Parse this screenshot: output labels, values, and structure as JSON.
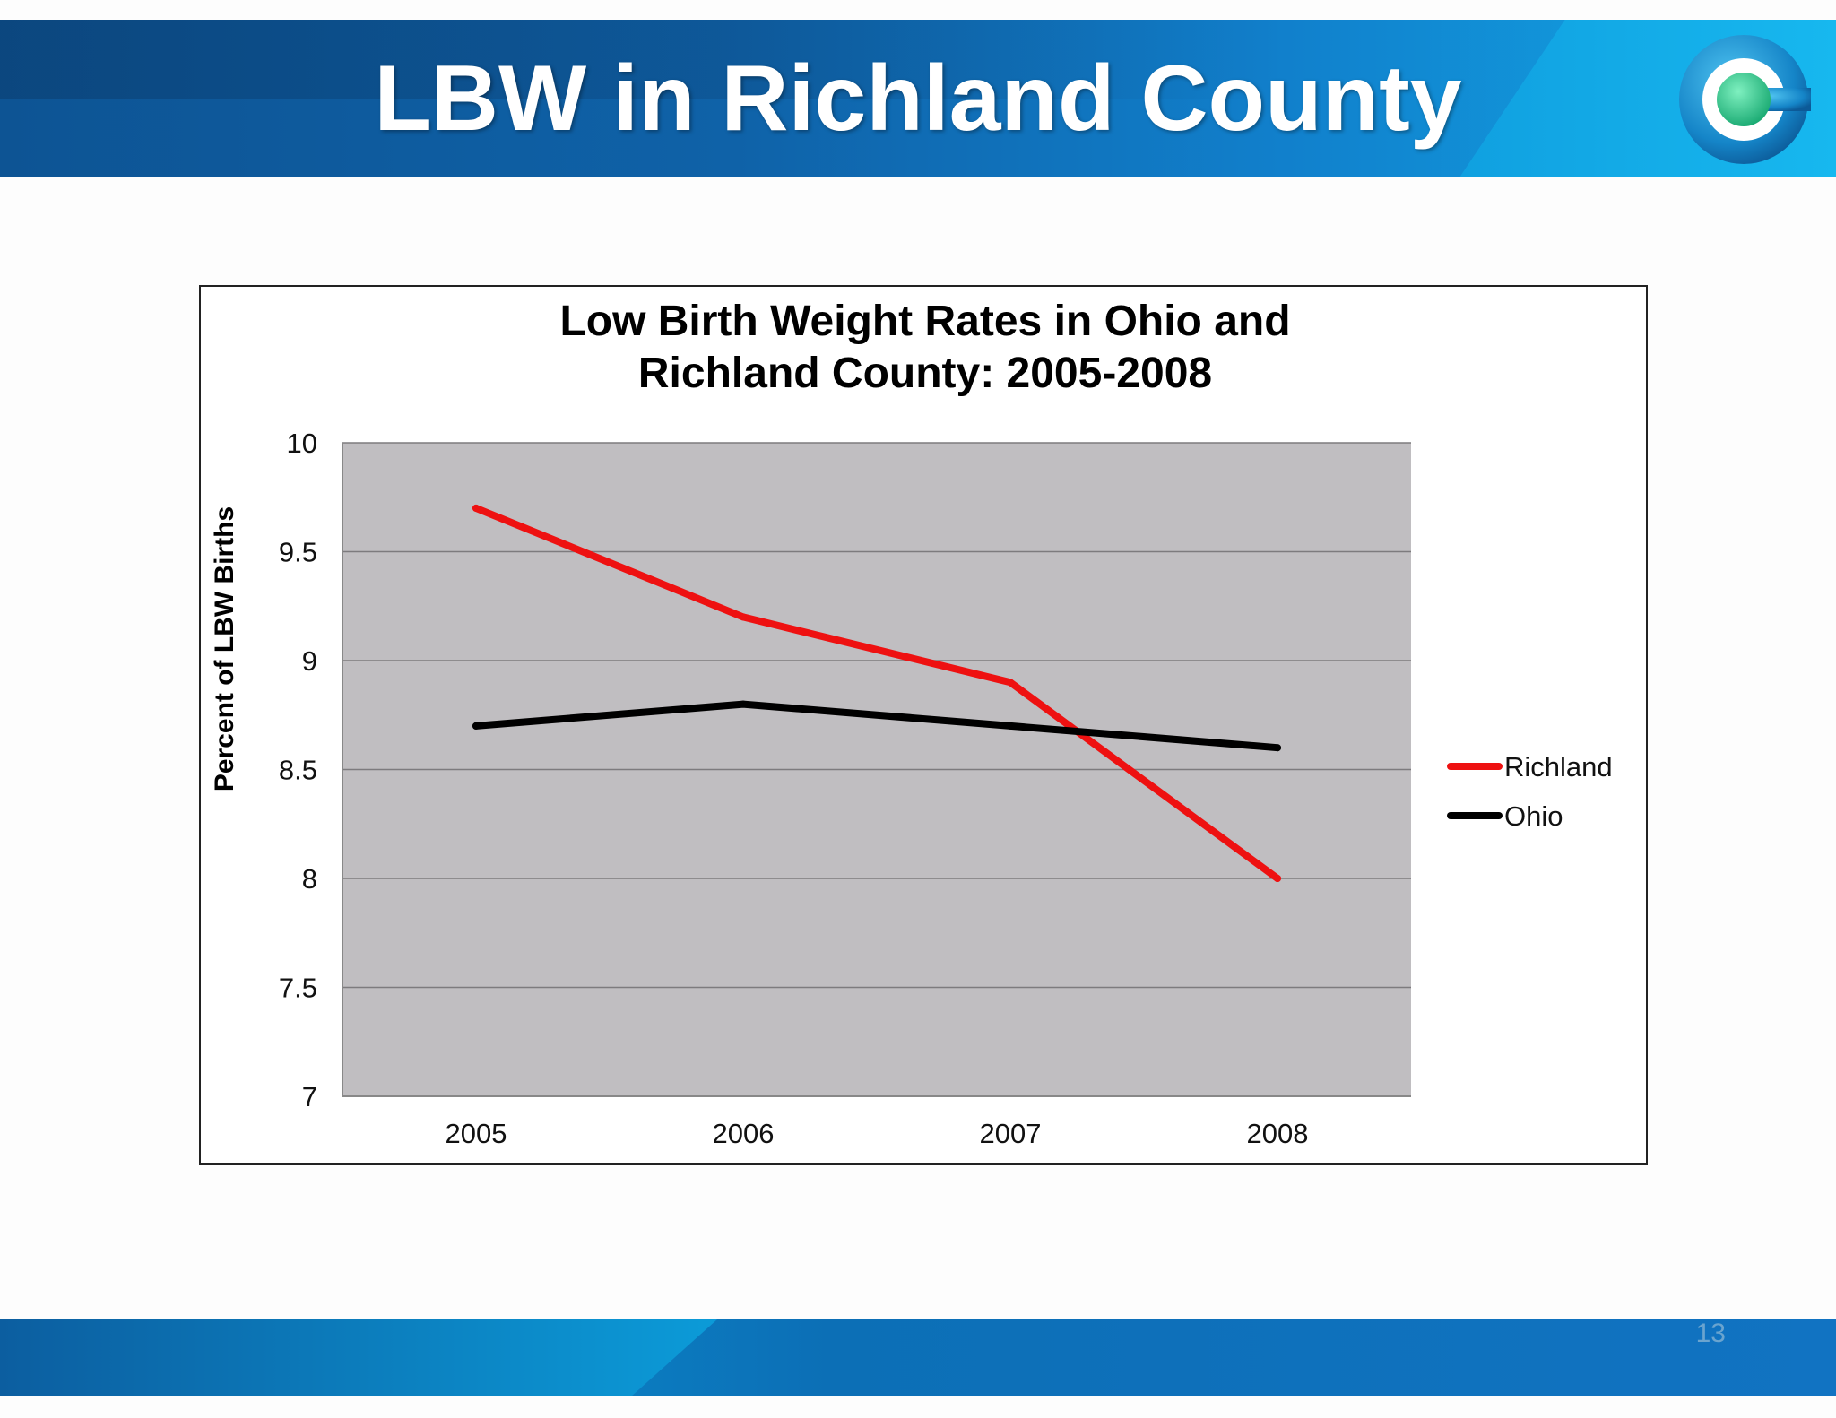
{
  "slide": {
    "title": "LBW in Richland County",
    "page_number": "13"
  },
  "logo": {
    "icon": "circle-c-logo-icon"
  },
  "colors": {
    "header_blue": "#0f62a8",
    "accent_cyan": "#12a8e6",
    "plot_bg": "#c0bec1",
    "richland": "#ee1111",
    "ohio": "#000000"
  },
  "chart_data": {
    "type": "line",
    "title_lines": [
      "Low Birth Weight Rates in Ohio and",
      "Richland County:  2005-2008"
    ],
    "xlabel": "",
    "ylabel": "Percent of LBW Births",
    "categories": [
      "2005",
      "2006",
      "2007",
      "2008"
    ],
    "y_ticks": [
      "7",
      "7.5",
      "8",
      "8.5",
      "9",
      "9.5",
      "10"
    ],
    "ylim": [
      7,
      10
    ],
    "grid": true,
    "legend_position": "right",
    "series": [
      {
        "name": "Richland",
        "color": "#ee1111",
        "values": [
          9.7,
          9.2,
          8.9,
          8.0
        ]
      },
      {
        "name": "Ohio",
        "color": "#000000",
        "values": [
          8.7,
          8.8,
          8.7,
          8.6
        ]
      }
    ]
  }
}
